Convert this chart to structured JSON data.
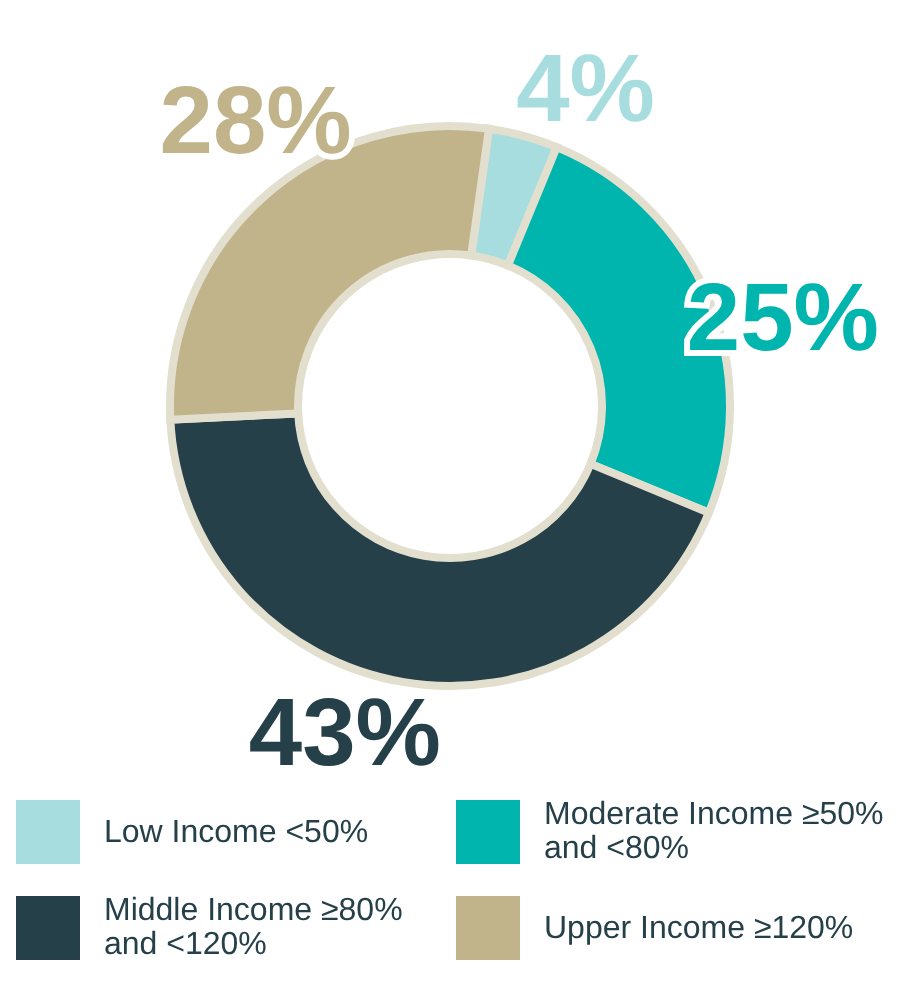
{
  "chart_data": {
    "type": "donut",
    "categories": [
      "Low Income <50%",
      "Moderate Income ≥50% and <80%",
      "Middle Income ≥80% and <120%",
      "Upper Income ≥120%"
    ],
    "values": [
      4,
      25,
      43,
      28
    ],
    "colors": [
      "#a8dde0",
      "#00b5ad",
      "#26404a",
      "#c2b48a"
    ],
    "value_labels": [
      "4%",
      "25%",
      "43%",
      "28%"
    ],
    "legend": "bottom"
  }
}
